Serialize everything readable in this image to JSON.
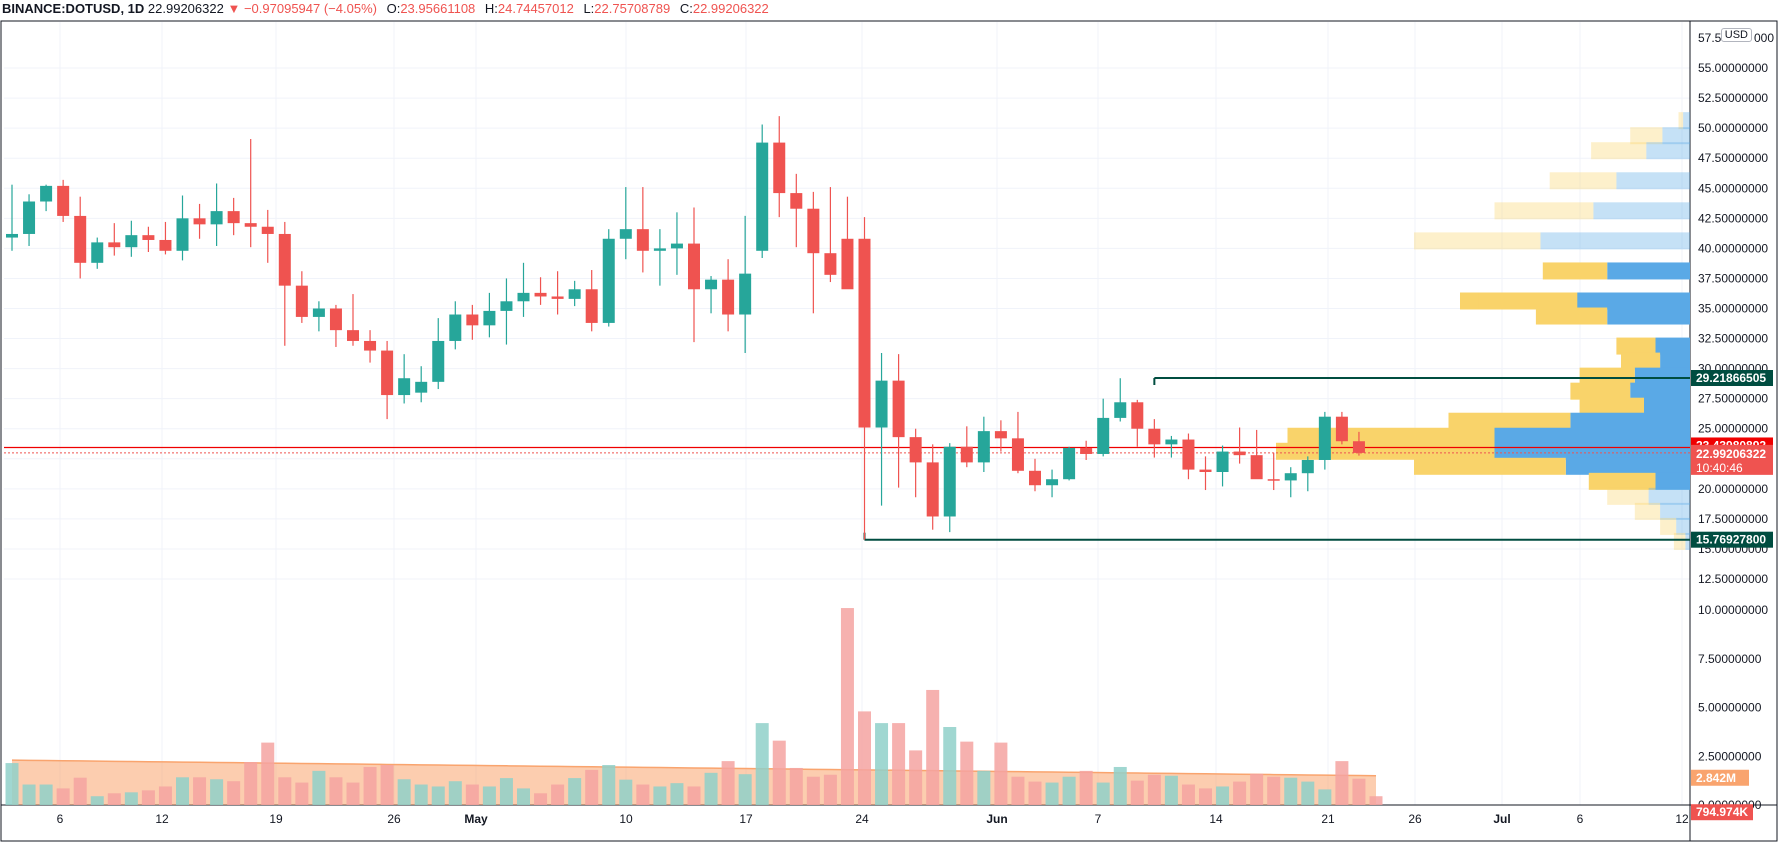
{
  "legend": {
    "symbol": "BINANCE:DOTUSD, 1D",
    "last": "22.99206322",
    "arrow": "▼",
    "change": "−0.97095947 (−4.05%)",
    "o_label": "O:",
    "o": "23.95661108",
    "h_label": "H:",
    "h": "24.74457012",
    "l_label": "L:",
    "l": "22.75708789",
    "c_label": "C:",
    "c": "22.99206322"
  },
  "unit_badge": "USD",
  "colors": {
    "up": "#26a69a",
    "down": "#ef5350",
    "vol_up": "#8fd0c9",
    "vol_down": "#f5a3a1",
    "vol_ma": "#f9a46e",
    "vp_up": "#5aa9e6",
    "vp_down": "#f9d36a",
    "level_line": "#004d40",
    "price_line": "#ef0000"
  },
  "chart_data": {
    "type": "candlestick",
    "title": "BINANCE:DOTUSD, 1D",
    "x_labels": [
      "6",
      "12",
      "19",
      "26",
      "May",
      "10",
      "17",
      "24",
      "Jun",
      "7",
      "14",
      "21",
      "26",
      "Jul",
      "6",
      "12"
    ],
    "y_ticks": [
      "55.00000000",
      "52.50000000",
      "50.00000000",
      "47.50000000",
      "45.00000000",
      "42.50000000",
      "40.00000000",
      "37.50000000",
      "35.00000000",
      "32.50000000",
      "30.00000000",
      "27.50000000",
      "25.00000000",
      "20.00000000",
      "17.50000000",
      "15.00000000",
      "12.50000000",
      "10.00000000",
      "7.50000000",
      "5.00000000",
      "2.50000000",
      "0.00000000"
    ],
    "y_tick_top_partial": "57.5",
    "y_tick_top_partial_end": "000",
    "ylim": [
      0,
      58
    ],
    "candles": [
      [
        40.9,
        45.3,
        39.8,
        41.2
      ],
      [
        41.2,
        44.5,
        40.2,
        43.9
      ],
      [
        43.9,
        45.3,
        43.1,
        45.2
      ],
      [
        45.2,
        45.7,
        42.2,
        42.7
      ],
      [
        42.7,
        44.3,
        37.5,
        38.8
      ],
      [
        38.8,
        40.9,
        38.3,
        40.5
      ],
      [
        40.5,
        42.1,
        39.4,
        40.1
      ],
      [
        40.1,
        42.3,
        39.3,
        41.1
      ],
      [
        41.1,
        41.8,
        39.7,
        40.7
      ],
      [
        40.7,
        42.2,
        39.5,
        39.8
      ],
      [
        39.8,
        44.4,
        39.0,
        42.5
      ],
      [
        42.5,
        43.7,
        40.8,
        42.0
      ],
      [
        42.0,
        45.4,
        40.2,
        43.1
      ],
      [
        43.1,
        44.2,
        41.1,
        42.1
      ],
      [
        42.1,
        49.1,
        40.1,
        41.8
      ],
      [
        41.8,
        43.2,
        38.8,
        41.2
      ],
      [
        41.2,
        42.2,
        31.9,
        36.9
      ],
      [
        36.9,
        38.1,
        33.8,
        34.3
      ],
      [
        34.3,
        35.6,
        33.1,
        35.0
      ],
      [
        35.0,
        35.3,
        31.8,
        33.2
      ],
      [
        33.2,
        36.2,
        31.9,
        32.3
      ],
      [
        32.3,
        33.2,
        30.5,
        31.5
      ],
      [
        31.5,
        32.3,
        25.8,
        27.8
      ],
      [
        27.8,
        31.2,
        27.1,
        29.2
      ],
      [
        28.0,
        30.2,
        27.2,
        28.9
      ],
      [
        28.9,
        34.2,
        28.3,
        32.3
      ],
      [
        32.3,
        35.6,
        31.6,
        34.5
      ],
      [
        34.5,
        35.3,
        32.4,
        33.6
      ],
      [
        33.6,
        36.3,
        32.6,
        34.8
      ],
      [
        34.8,
        37.5,
        32.0,
        35.6
      ],
      [
        35.6,
        38.8,
        34.3,
        36.3
      ],
      [
        36.3,
        37.6,
        35.3,
        36.0
      ],
      [
        36.0,
        38.1,
        34.5,
        35.8
      ],
      [
        35.8,
        37.3,
        35.2,
        36.6
      ],
      [
        36.6,
        38.2,
        33.1,
        33.8
      ],
      [
        33.8,
        41.6,
        33.5,
        40.8
      ],
      [
        40.8,
        45.1,
        39.1,
        41.6
      ],
      [
        41.6,
        45.1,
        38.0,
        39.8
      ],
      [
        39.8,
        41.6,
        36.9,
        40.0
      ],
      [
        40.0,
        43.0,
        37.8,
        40.4
      ],
      [
        40.4,
        43.4,
        32.2,
        36.6
      ],
      [
        36.6,
        37.7,
        34.6,
        37.4
      ],
      [
        37.4,
        39.1,
        33.1,
        34.5
      ],
      [
        34.5,
        42.7,
        31.3,
        37.9
      ],
      [
        39.8,
        50.3,
        39.2,
        48.8
      ],
      [
        48.8,
        51.0,
        42.6,
        44.6
      ],
      [
        44.6,
        46.2,
        40.1,
        43.3
      ],
      [
        43.3,
        44.7,
        34.6,
        39.6
      ],
      [
        39.6,
        45.1,
        37.2,
        37.8
      ],
      [
        40.8,
        44.3,
        36.8,
        36.6
      ],
      [
        40.8,
        42.6,
        15.77,
        25.1
      ],
      [
        25.1,
        31.3,
        18.6,
        29.0
      ],
      [
        29.0,
        31.2,
        20.1,
        24.3
      ],
      [
        24.3,
        25.0,
        19.3,
        22.2
      ],
      [
        22.2,
        23.7,
        16.6,
        17.7
      ],
      [
        17.7,
        23.8,
        16.4,
        23.5
      ],
      [
        23.5,
        25.2,
        21.8,
        22.2
      ],
      [
        22.2,
        26.0,
        21.4,
        24.8
      ],
      [
        24.8,
        25.7,
        23.1,
        24.2
      ],
      [
        24.2,
        26.4,
        21.3,
        21.5
      ],
      [
        21.5,
        22.5,
        19.8,
        20.3
      ],
      [
        20.3,
        21.6,
        19.3,
        20.8
      ],
      [
        20.8,
        23.5,
        20.7,
        23.4
      ],
      [
        23.4,
        24.0,
        22.4,
        22.9
      ],
      [
        22.9,
        27.5,
        22.7,
        25.9
      ],
      [
        25.9,
        29.2,
        25.6,
        27.2
      ],
      [
        27.2,
        27.4,
        23.5,
        25.0
      ],
      [
        25.0,
        25.8,
        22.6,
        23.7
      ],
      [
        23.7,
        24.4,
        22.6,
        24.1
      ],
      [
        24.1,
        24.6,
        20.8,
        21.6
      ],
      [
        21.6,
        22.7,
        19.9,
        21.4
      ],
      [
        21.4,
        23.6,
        20.2,
        23.1
      ],
      [
        23.1,
        25.1,
        22.1,
        22.8
      ],
      [
        22.8,
        24.9,
        21.3,
        20.8
      ],
      [
        20.8,
        23.0,
        19.9,
        20.7
      ],
      [
        20.7,
        21.8,
        19.3,
        21.3
      ],
      [
        21.3,
        22.7,
        19.8,
        22.4
      ],
      [
        22.4,
        26.4,
        21.6,
        26.0
      ],
      [
        26.0,
        26.4,
        23.7,
        23.96
      ],
      [
        23.96,
        24.74,
        22.76,
        22.99
      ]
    ],
    "volume_values": [
      2.15,
      1.05,
      1.05,
      0.85,
      1.4,
      0.45,
      0.6,
      0.65,
      0.75,
      0.95,
      1.42,
      1.42,
      1.32,
      1.22,
      2.2,
      3.2,
      1.42,
      1.15,
      1.75,
      1.42,
      1.15,
      1.95,
      2.05,
      1.32,
      1.05,
      0.95,
      1.22,
      1.05,
      0.95,
      1.38,
      0.85,
      0.6,
      1.05,
      1.38,
      1.8,
      2.05,
      1.3,
      1.05,
      0.95,
      1.12,
      0.95,
      1.65,
      2.25,
      1.58,
      4.2,
      3.3,
      1.9,
      1.45,
      1.55,
      10.1,
      4.8,
      4.2,
      4.2,
      2.8,
      5.9,
      4.0,
      3.25,
      1.75,
      3.2,
      1.45,
      1.2,
      1.15,
      1.45,
      1.75,
      1.15,
      1.95,
      1.25,
      1.55,
      1.5,
      1.05,
      0.85,
      0.95,
      1.2,
      1.6,
      1.45,
      1.4,
      1.2,
      0.8,
      2.25,
      1.35,
      0.45
    ],
    "volume_ma_start": 2.3,
    "volume_ma_end": 1.5,
    "volume_axis_ticks": [
      "10.00000000",
      "7.50000000",
      "5.00000000",
      "2.50000000",
      "0.00000000"
    ],
    "volume_profile": [
      [
        50.0,
        0.2,
        0.3
      ],
      [
        48.75,
        1.4,
        1.2
      ],
      [
        47.5,
        2.4,
        1.9
      ],
      [
        45.0,
        2.9,
        3.2
      ],
      [
        42.5,
        4.3,
        4.2
      ],
      [
        40.0,
        5.5,
        6.5
      ],
      [
        37.5,
        2.8,
        3.6
      ],
      [
        35.0,
        4.8,
        5.2
      ],
      [
        35.0,
        4.3,
        4.9
      ],
      [
        33.75,
        3.1,
        3.6
      ],
      [
        31.25,
        1.7,
        1.5
      ],
      [
        30.0,
        1.7,
        1.3
      ],
      [
        28.75,
        2.4,
        2.4
      ],
      [
        27.5,
        2.6,
        2.6
      ],
      [
        26.25,
        2.8,
        2.0
      ],
      [
        25.0,
        5.3,
        5.2
      ],
      [
        23.75,
        9.0,
        8.5
      ],
      [
        22.5,
        9.5,
        8.5
      ],
      [
        21.25,
        6.6,
        5.4
      ],
      [
        20.0,
        2.9,
        1.5
      ],
      [
        18.75,
        1.8,
        1.8
      ],
      [
        17.5,
        1.1,
        1.3
      ],
      [
        16.25,
        0.7,
        0.6
      ],
      [
        15.0,
        0.5,
        0.2
      ]
    ],
    "levels": [
      {
        "label": "29.21866505",
        "value": 29.21866505,
        "start_index": 67
      },
      {
        "label": "15.76927800",
        "value": 15.769278,
        "start_index": 50
      }
    ],
    "price_labels": [
      {
        "label": "23.43980892",
        "value": 23.43980892
      },
      {
        "label": "22.99206322",
        "value": 22.99206322
      },
      {
        "label": "10:40:46"
      }
    ],
    "volume_labels": [
      {
        "label": "2.842M",
        "color": "#f9a46e"
      },
      {
        "label": "794.974K",
        "color": "#ef5350"
      }
    ],
    "grid": true
  }
}
